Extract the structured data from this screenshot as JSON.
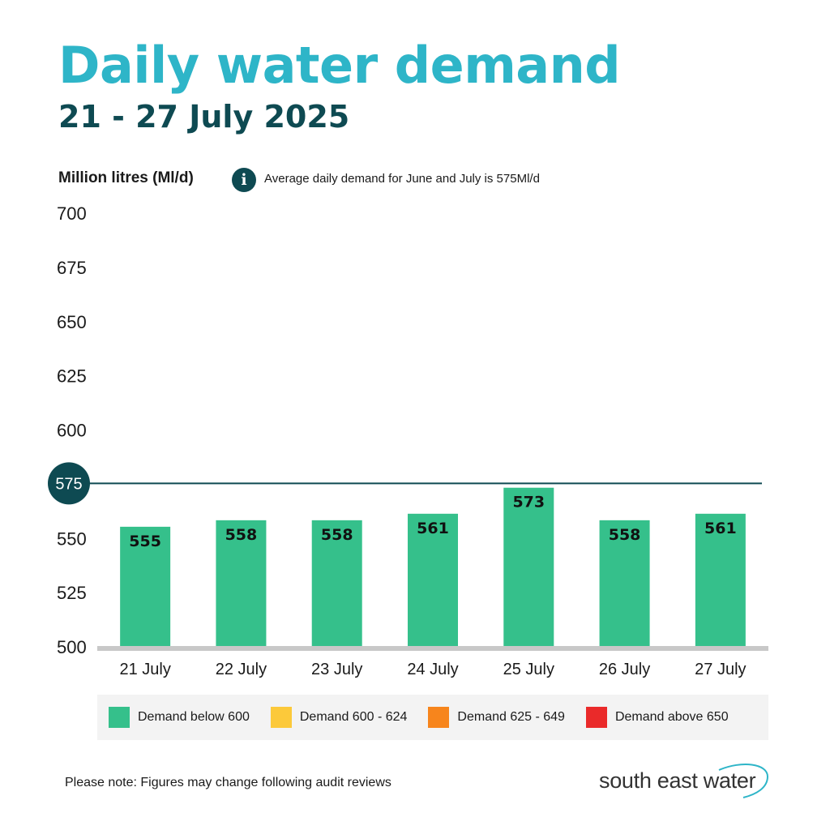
{
  "colors": {
    "title": "#2eb5c8",
    "dark": "#0e4a52",
    "bar": "#35c08b",
    "axis": "#c8c8c8",
    "legend_bg": "#f3f3f3"
  },
  "header": {
    "title": "Daily water demand",
    "subtitle": "21 - 27 July 2025"
  },
  "note": {
    "unit_label": "Million litres (Ml/d)",
    "info_icon": "info-icon",
    "info_glyph": "i",
    "info_text": "Average daily demand for June and July is 575Ml/d"
  },
  "chart_data": {
    "type": "bar",
    "title": "Daily water demand",
    "subtitle": "21 - 27 July 2025",
    "xlabel": "",
    "ylabel": "Million litres (Ml/d)",
    "categories": [
      "21 July",
      "22 July",
      "23 July",
      "24 July",
      "25 July",
      "26 July",
      "27 July"
    ],
    "values": [
      555,
      558,
      558,
      561,
      573,
      558,
      561
    ],
    "ylim": [
      500,
      700
    ],
    "yticks": [
      500,
      525,
      550,
      575,
      600,
      625,
      650,
      675,
      700
    ],
    "reference_line": {
      "value": 575,
      "label": "575"
    },
    "grid": false,
    "data_labels": true
  },
  "legend": {
    "items": [
      {
        "label": "Demand below 600",
        "color": "#35c08b"
      },
      {
        "label": "Demand 600 - 624",
        "color": "#fcc93a"
      },
      {
        "label": "Demand 625 - 649",
        "color": "#f7851c"
      },
      {
        "label": "Demand above 650",
        "color": "#ea2a2a"
      }
    ]
  },
  "footer": {
    "note": "Please note: Figures may change following audit reviews",
    "logo_text": "south east water"
  }
}
